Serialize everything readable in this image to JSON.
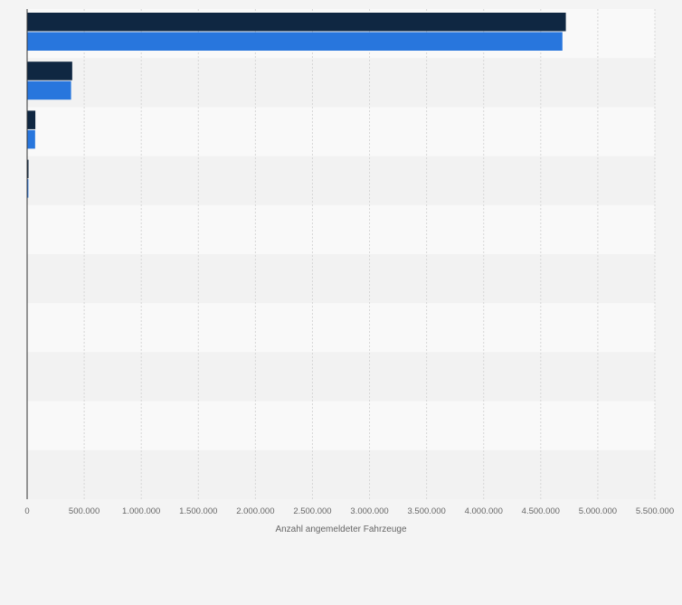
{
  "chart_data": {
    "type": "bar",
    "orientation": "horizontal",
    "categories": [
      "",
      "",
      "",
      "",
      "",
      "",
      "",
      "",
      "",
      ""
    ],
    "series": [
      {
        "values": [
          4720000,
          395000,
          72000,
          12000,
          0,
          0,
          0,
          0,
          0,
          0
        ],
        "color": "#0f2742"
      },
      {
        "values": [
          4690000,
          385000,
          70000,
          11000,
          0,
          0,
          0,
          0,
          0,
          0
        ],
        "color": "#2876dd"
      }
    ],
    "xlim": [
      0,
      5500000
    ],
    "xticks": [
      {
        "value": 0,
        "label": "0"
      },
      {
        "value": 500000,
        "label": "500.000"
      },
      {
        "value": 1000000,
        "label": "1.000.000"
      },
      {
        "value": 1500000,
        "label": "1.500.000"
      },
      {
        "value": 2000000,
        "label": "2.000.000"
      },
      {
        "value": 2500000,
        "label": "2.500.000"
      },
      {
        "value": 3000000,
        "label": "3.000.000"
      },
      {
        "value": 3500000,
        "label": "3.500.000"
      },
      {
        "value": 4000000,
        "label": "4.000.000"
      },
      {
        "value": 4500000,
        "label": "4.500.000"
      },
      {
        "value": 5000000,
        "label": "5.000.000"
      },
      {
        "value": 5500000,
        "label": "5.500.000"
      }
    ],
    "xlabel": "Anzahl angemeldeter Fahrzeuge",
    "grid": true,
    "legend": "none"
  }
}
